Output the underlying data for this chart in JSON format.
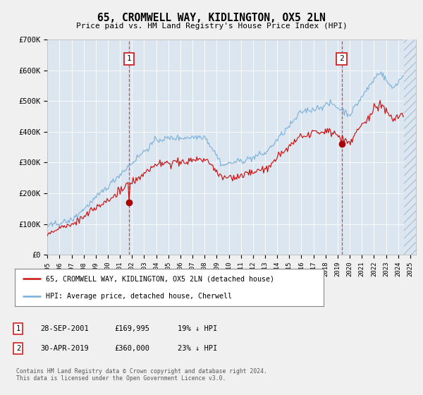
{
  "title": "65, CROMWELL WAY, KIDLINGTON, OX5 2LN",
  "subtitle": "Price paid vs. HM Land Registry's House Price Index (HPI)",
  "fig_bg_color": "#f0f0f0",
  "plot_bg_color": "#dce6f1",
  "hpi_color": "#7ab0d8",
  "price_color": "#cc1111",
  "marker_color": "#aa0000",
  "grid_color": "#ffffff",
  "sale1_x": 2001.75,
  "sale1_y": 169995,
  "sale2_x": 2019.33,
  "sale2_y": 360000,
  "legend_entries": [
    "65, CROMWELL WAY, KIDLINGTON, OX5 2LN (detached house)",
    "HPI: Average price, detached house, Cherwell"
  ],
  "table_rows": [
    {
      "num": "1",
      "date": "28-SEP-2001",
      "price": "£169,995",
      "pct": "19% ↓ HPI"
    },
    {
      "num": "2",
      "date": "30-APR-2019",
      "price": "£360,000",
      "pct": "23% ↓ HPI"
    }
  ],
  "footnote": "Contains HM Land Registry data © Crown copyright and database right 2024.\nThis data is licensed under the Open Government Licence v3.0.",
  "ylim": [
    0,
    700000
  ],
  "yticks": [
    0,
    100000,
    200000,
    300000,
    400000,
    500000,
    600000,
    700000
  ],
  "ytick_labels": [
    "£0",
    "£100K",
    "£200K",
    "£300K",
    "£400K",
    "£500K",
    "£600K",
    "£700K"
  ],
  "xlim_start": 1995.0,
  "xlim_end": 2025.5,
  "xtick_years": [
    1995,
    1996,
    1997,
    1998,
    1999,
    2000,
    2001,
    2002,
    2003,
    2004,
    2005,
    2006,
    2007,
    2008,
    2009,
    2010,
    2011,
    2012,
    2013,
    2014,
    2015,
    2016,
    2017,
    2018,
    2019,
    2020,
    2021,
    2022,
    2023,
    2024,
    2025
  ]
}
